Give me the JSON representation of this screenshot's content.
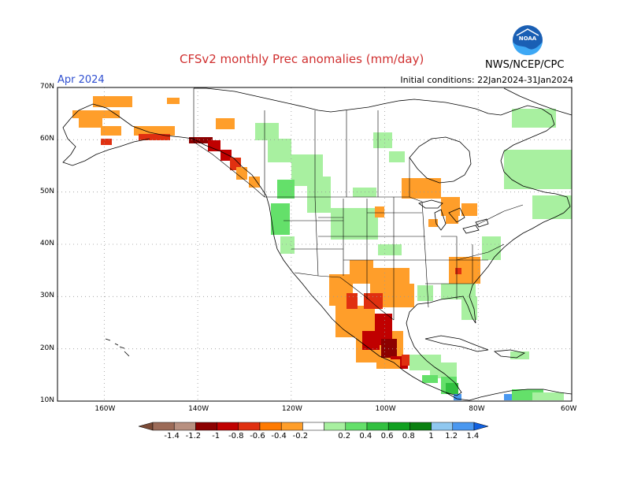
{
  "title": "CFSv2 monthly Prec anomalies (mm/day)",
  "forecast_month": "Apr 2024",
  "initial_conditions": "Initial conditions: 22Jan2024-31Jan2024",
  "agency": "NWS/NCEP/CPC",
  "logo": {
    "icon": "noaa-logo-icon",
    "text": "NOAA"
  },
  "map": {
    "lat_range": [
      10,
      70
    ],
    "lon_range": [
      -170,
      -60
    ],
    "lat_ticks": [
      "10N",
      "20N",
      "30N",
      "40N",
      "50N",
      "60N",
      "70N"
    ],
    "lon_ticks": [
      "160W",
      "140W",
      "120W",
      "100W",
      "80W",
      "60W"
    ]
  },
  "colorbar": {
    "labels": [
      "-1.4",
      "-1.2",
      "-1",
      "-0.8",
      "-0.6",
      "-0.4",
      "-0.2",
      "0.2",
      "0.4",
      "0.6",
      "0.8",
      "1",
      "1.2",
      "1.4"
    ],
    "colors": [
      "#7a4a36",
      "#9c6b58",
      "#b89080",
      "#8c0000",
      "#c00000",
      "#e03010",
      "#ff7a00",
      "#ff9e2a",
      "#ffffff",
      "#a8f0a0",
      "#64e06a",
      "#32c040",
      "#10a020",
      "#0a8010",
      "#90c8f0",
      "#4a98f0",
      "#1060e0"
    ]
  },
  "anomaly_colors": {
    "orange": "#ff9e2a",
    "dark_orange": "#ff7a00",
    "red_orange": "#e03010",
    "red": "#c00000",
    "dark_red": "#8c0000",
    "light_green": "#a8f0a0",
    "green": "#64e06a",
    "dark_green": "#32c040",
    "blue": "#4a98f0"
  }
}
